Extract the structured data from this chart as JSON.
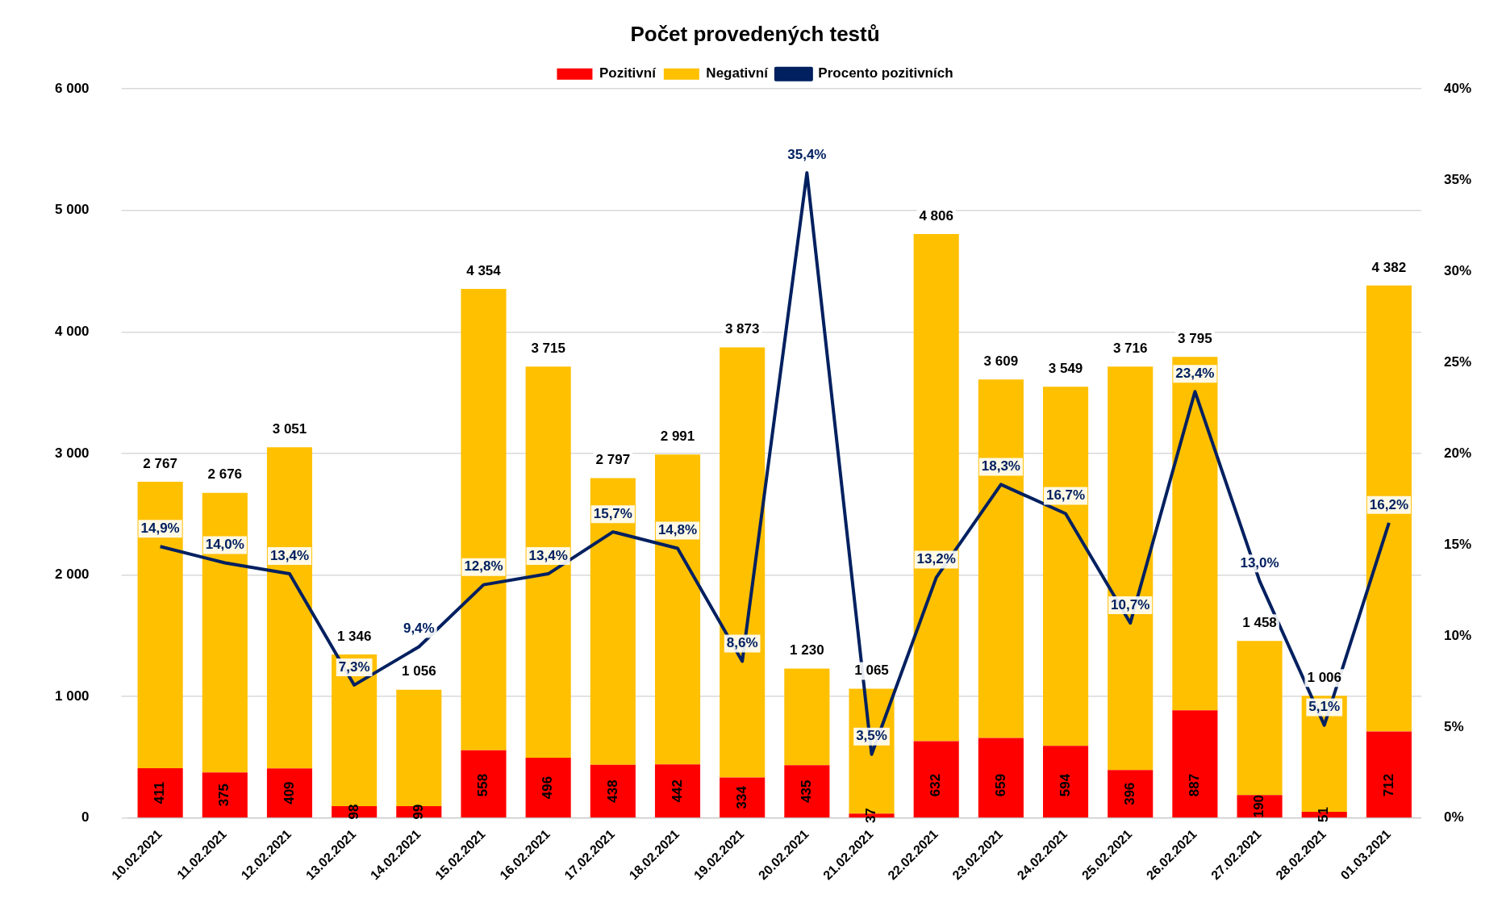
{
  "chart_data": {
    "type": "bar",
    "title": "Počet provedených testů",
    "stacked": true,
    "grid": "y",
    "legend": "top",
    "marker": "none",
    "line_style": "solid",
    "categories": [
      "10.02.2021",
      "11.02.2021",
      "12.02.2021",
      "13.02.2021",
      "14.02.2021",
      "15.02.2021",
      "16.02.2021",
      "17.02.2021",
      "18.02.2021",
      "19.02.2021",
      "20.02.2021",
      "21.02.2021",
      "22.02.2021",
      "23.02.2021",
      "24.02.2021",
      "25.02.2021",
      "26.02.2021",
      "27.02.2021",
      "28.02.2021",
      "01.03.2021"
    ],
    "series": [
      {
        "name": "Pozitivní",
        "color": "#ff0000",
        "values": [
          411,
          375,
          409,
          98,
          99,
          558,
          496,
          438,
          442,
          334,
          435,
          37,
          632,
          659,
          594,
          396,
          887,
          190,
          51,
          712
        ],
        "value_labels": [
          "411",
          "375",
          "409",
          "98",
          "99",
          "558",
          "496",
          "438",
          "442",
          "334",
          "435",
          "37",
          "632",
          "659",
          "594",
          "396",
          "887",
          "190",
          "51",
          "712"
        ]
      },
      {
        "name": "Negativní",
        "color": "#ffc000",
        "values": [
          2356,
          2301,
          2642,
          1248,
          957,
          3796,
          3219,
          2359,
          2549,
          3539,
          795,
          1028,
          4174,
          2950,
          2955,
          3320,
          2908,
          1268,
          955,
          3670
        ]
      },
      {
        "name": "Procento pozitivních",
        "type": "line",
        "axis": "y2",
        "color": "#002060",
        "values": [
          14.9,
          14.0,
          13.4,
          7.3,
          9.4,
          12.8,
          13.4,
          15.7,
          14.8,
          8.6,
          35.4,
          3.5,
          13.2,
          18.3,
          16.7,
          10.7,
          23.4,
          13.0,
          5.1,
          16.2
        ],
        "value_labels": [
          "14,9%",
          "14,0%",
          "13,4%",
          "7,3%",
          "9,4%",
          "12,8%",
          "13,4%",
          "15,7%",
          "14,8%",
          "8,6%",
          "35,4%",
          "3,5%",
          "13,2%",
          "18,3%",
          "16,7%",
          "10,7%",
          "23,4%",
          "13,0%",
          "5,1%",
          "16,2%"
        ]
      }
    ],
    "totals": [
      "2 767",
      "2 676",
      "3 051",
      "1 346",
      "1 056",
      "4 354",
      "3 715",
      "2 797",
      "2 991",
      "3 873",
      "1 230",
      "1 065",
      "4 806",
      "3 609",
      "3 549",
      "3 716",
      "3 795",
      "1 458",
      "1 006",
      "4 382"
    ],
    "ylim": [
      0,
      6000
    ],
    "yticks": [
      {
        "value": 0,
        "label": "0"
      },
      {
        "value": 1000,
        "label": "1 000"
      },
      {
        "value": 2000,
        "label": "2 000"
      },
      {
        "value": 3000,
        "label": "3 000"
      },
      {
        "value": 4000,
        "label": "4 000"
      },
      {
        "value": 5000,
        "label": "5 000"
      },
      {
        "value": 6000,
        "label": "6 000"
      }
    ],
    "y2lim": [
      0,
      40
    ],
    "y2ticks": [
      {
        "value": 0,
        "label": "0%"
      },
      {
        "value": 5,
        "label": "5%"
      },
      {
        "value": 10,
        "label": "10%"
      },
      {
        "value": 15,
        "label": "15%"
      },
      {
        "value": 20,
        "label": "20%"
      },
      {
        "value": 25,
        "label": "25%"
      },
      {
        "value": 30,
        "label": "30%"
      },
      {
        "value": 35,
        "label": "35%"
      },
      {
        "value": 40,
        "label": "40%"
      }
    ]
  }
}
